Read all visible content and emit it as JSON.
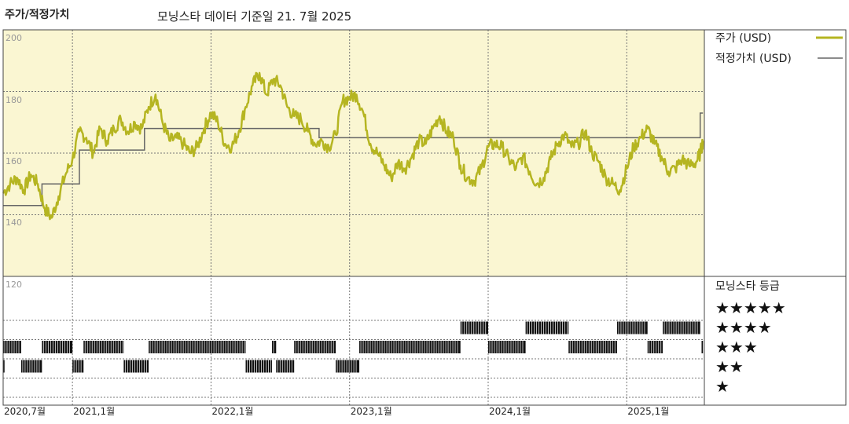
{
  "header": {
    "title": "주가/적정가치",
    "subtitle": "모닝스타 데이터 기준일 21. 7월 2025"
  },
  "legend": {
    "price_label": "주가 (USD)",
    "fair_label": "적정가치 (USD)",
    "rating_title": "모닝스타 등급",
    "star_rows": [
      "★★★★★",
      "★★★★",
      "★★★",
      "★★",
      "★"
    ]
  },
  "colors": {
    "price": "#b5b521",
    "fair": "#666666",
    "top_panel_bg": "#faf6d2",
    "rating_bar": "#111111"
  },
  "chart_data": {
    "type": "line",
    "x_tick_labels": [
      "2020,7월",
      "2021,1월",
      "2022,1월",
      "2023,1월",
      "2024,1월",
      "2025,1월"
    ],
    "x_ticks": [
      2020.5,
      2021.0,
      2022.0,
      2023.0,
      2024.0,
      2025.0
    ],
    "x_range": [
      2020.5,
      2025.56
    ],
    "y_tick_labels": [
      "200",
      "180",
      "160",
      "140",
      "120"
    ],
    "y_ticks": [
      200,
      180,
      160,
      140,
      120
    ],
    "ylim": [
      120,
      200
    ],
    "grid": true,
    "series": [
      {
        "name": "주가 (USD)",
        "x": [
          2020.5,
          2020.55,
          2020.6,
          2020.65,
          2020.7,
          2020.75,
          2020.8,
          2020.85,
          2020.9,
          2020.95,
          2021.0,
          2021.05,
          2021.1,
          2021.15,
          2021.2,
          2021.25,
          2021.3,
          2021.35,
          2021.4,
          2021.45,
          2021.5,
          2021.55,
          2021.6,
          2021.65,
          2021.7,
          2021.75,
          2021.8,
          2021.85,
          2021.9,
          2021.95,
          2022.0,
          2022.05,
          2022.1,
          2022.15,
          2022.2,
          2022.25,
          2022.3,
          2022.35,
          2022.4,
          2022.45,
          2022.5,
          2022.55,
          2022.6,
          2022.65,
          2022.7,
          2022.75,
          2022.8,
          2022.85,
          2022.9,
          2022.95,
          2023.0,
          2023.05,
          2023.1,
          2023.15,
          2023.2,
          2023.25,
          2023.3,
          2023.35,
          2023.4,
          2023.45,
          2023.5,
          2023.55,
          2023.6,
          2023.65,
          2023.7,
          2023.75,
          2023.8,
          2023.85,
          2023.9,
          2023.95,
          2024.0,
          2024.05,
          2024.1,
          2024.15,
          2024.2,
          2024.25,
          2024.3,
          2024.35,
          2024.4,
          2024.45,
          2024.5,
          2024.55,
          2024.6,
          2024.65,
          2024.7,
          2024.75,
          2024.8,
          2024.85,
          2024.9,
          2024.95,
          2025.0,
          2025.05,
          2025.1,
          2025.15,
          2025.2,
          2025.25,
          2025.3,
          2025.35,
          2025.4,
          2025.45,
          2025.5,
          2025.53,
          2025.55
        ],
        "values": [
          147,
          150,
          152,
          148,
          153,
          150,
          142,
          139,
          146,
          153,
          158,
          167,
          165,
          160,
          168,
          164,
          168,
          171,
          167,
          170,
          168,
          175,
          179,
          170,
          164,
          165,
          163,
          160,
          162,
          168,
          173,
          170,
          163,
          162,
          167,
          175,
          182,
          186,
          179,
          184,
          182,
          175,
          172,
          171,
          167,
          163,
          164,
          162,
          166,
          177,
          178,
          179,
          173,
          163,
          160,
          156,
          152,
          157,
          155,
          159,
          164,
          163,
          168,
          172,
          167,
          165,
          156,
          152,
          151,
          155,
          162,
          163,
          162,
          158,
          155,
          159,
          154,
          150,
          152,
          158,
          163,
          166,
          162,
          163,
          167,
          160,
          157,
          152,
          150,
          148,
          155,
          162,
          165,
          168,
          163,
          159,
          154,
          155,
          158,
          156,
          157,
          160,
          164
        ]
      },
      {
        "name": "적정가치 (USD)",
        "x": [
          2020.5,
          2020.78,
          2020.78,
          2021.05,
          2021.05,
          2021.52,
          2021.52,
          2022.05,
          2022.05,
          2022.78,
          2022.78,
          2025.53,
          2025.53,
          2025.55
        ],
        "values": [
          143,
          143,
          150,
          150,
          161,
          161,
          168,
          168,
          168,
          168,
          165,
          165,
          173,
          173
        ]
      }
    ],
    "rating_panel": {
      "levels": [
        5,
        4,
        3,
        2,
        1
      ],
      "segments": [
        {
          "stars": 3,
          "start": 2020.5,
          "end": 2020.63
        },
        {
          "stars": 2,
          "start": 2020.5,
          "end": 2020.51
        },
        {
          "stars": 2,
          "start": 2020.63,
          "end": 2020.78
        },
        {
          "stars": 3,
          "start": 2020.78,
          "end": 2021.0
        },
        {
          "stars": 2,
          "start": 2021.0,
          "end": 2021.08
        },
        {
          "stars": 3,
          "start": 2021.08,
          "end": 2021.37
        },
        {
          "stars": 2,
          "start": 2021.37,
          "end": 2021.55
        },
        {
          "stars": 3,
          "start": 2021.55,
          "end": 2022.25
        },
        {
          "stars": 2,
          "start": 2022.25,
          "end": 2022.44
        },
        {
          "stars": 3,
          "start": 2022.44,
          "end": 2022.47
        },
        {
          "stars": 2,
          "start": 2022.47,
          "end": 2022.6
        },
        {
          "stars": 3,
          "start": 2022.6,
          "end": 2022.9
        },
        {
          "stars": 2,
          "start": 2022.9,
          "end": 2023.07
        },
        {
          "stars": 3,
          "start": 2023.07,
          "end": 2023.8
        },
        {
          "stars": 4,
          "start": 2023.8,
          "end": 2024.0
        },
        {
          "stars": 3,
          "start": 2024.0,
          "end": 2024.27
        },
        {
          "stars": 4,
          "start": 2024.27,
          "end": 2024.58
        },
        {
          "stars": 3,
          "start": 2024.58,
          "end": 2024.93
        },
        {
          "stars": 4,
          "start": 2024.93,
          "end": 2025.15
        },
        {
          "stars": 3,
          "start": 2025.15,
          "end": 2025.26
        },
        {
          "stars": 4,
          "start": 2025.26,
          "end": 2025.53
        },
        {
          "stars": 3,
          "start": 2025.54,
          "end": 2025.55
        }
      ]
    }
  }
}
